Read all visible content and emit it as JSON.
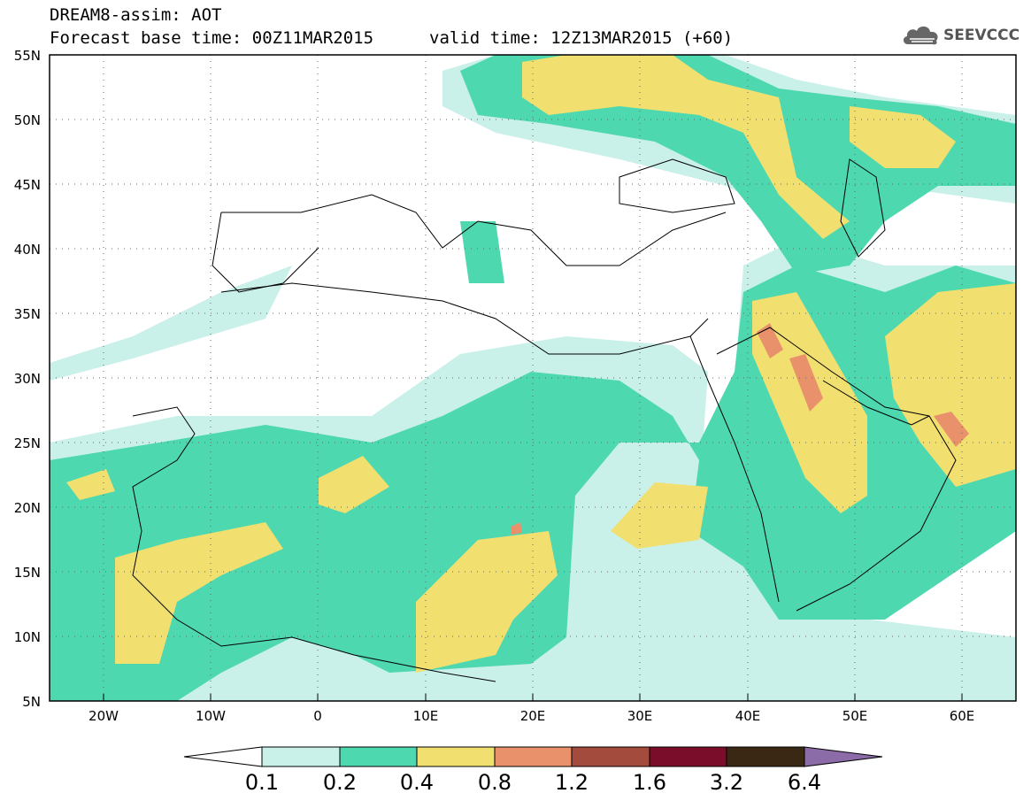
{
  "title": {
    "line1": "DREAM8-assim: AOT",
    "line2": "Forecast base time: 00Z11MAR2015",
    "valid": "valid time: 12Z13MAR2015 (+60)"
  },
  "logo": {
    "text": "SEEVCCC",
    "icon": "cloud-icon"
  },
  "axes": {
    "lat_labels": [
      "55N",
      "50N",
      "45N",
      "40N",
      "35N",
      "30N",
      "25N",
      "20N",
      "15N",
      "10N",
      "5N"
    ],
    "lon_labels": [
      "20W",
      "10W",
      "0",
      "10E",
      "20E",
      "30E",
      "40E",
      "50E",
      "60E"
    ]
  },
  "colorbar": {
    "labels": [
      "0.1",
      "0.2",
      "0.4",
      "0.8",
      "1.2",
      "1.6",
      "3.2",
      "6.4"
    ],
    "colors": [
      "#ffffff",
      "#c9f0e9",
      "#4dd8b0",
      "#f1e070",
      "#e8916b",
      "#a34b3d",
      "#7a0e2a",
      "#3a2814",
      "#8b6ba8"
    ]
  },
  "chart_data": {
    "type": "heatmap",
    "variable": "AOT",
    "levels": [
      0.1,
      0.2,
      0.4,
      0.8,
      1.2,
      1.6,
      3.2,
      6.4
    ],
    "lon_range": [
      -25,
      65
    ],
    "lat_range": [
      5,
      55
    ]
  }
}
